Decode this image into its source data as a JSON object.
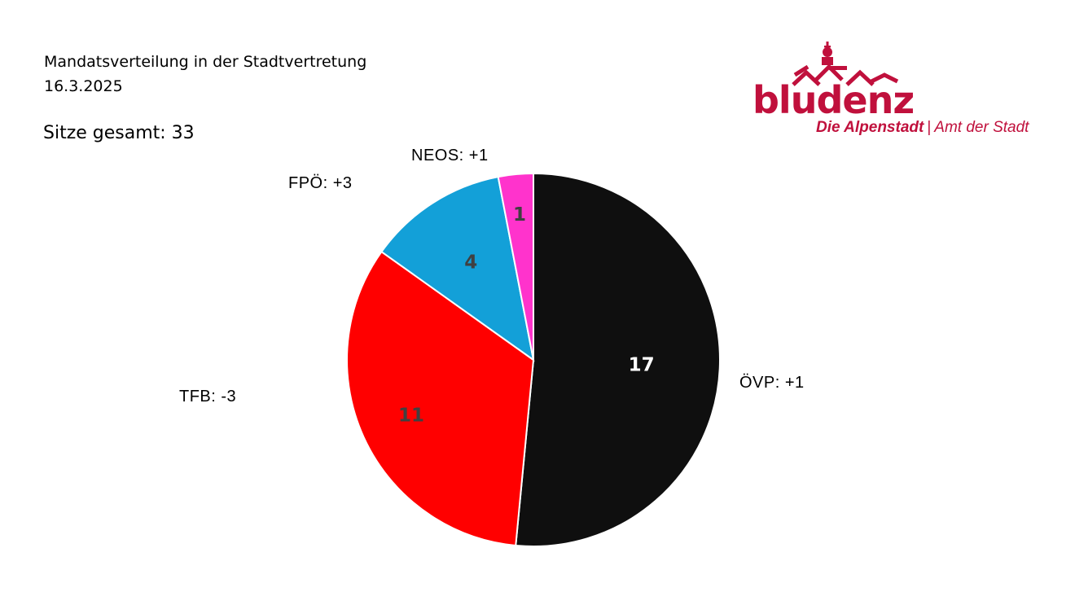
{
  "header": {
    "title": "Mandatsverteilung in der Stadtvertretung",
    "date": "16.3.2025",
    "seats_total": "Sitze gesamt: 33"
  },
  "logo": {
    "wordmark": "bludenz",
    "tagline_primary": "Die Alpenstadt",
    "separator": "|",
    "tagline_secondary": "Amt der Stadt",
    "color": "#c0103c"
  },
  "chart_data": {
    "type": "pie",
    "title": "Mandatsverteilung in der Stadtvertretung",
    "total": 33,
    "start": "12 o'clock, clockwise",
    "slices": [
      {
        "name": "ÖVP",
        "value": 17,
        "change": "+1",
        "color": "#0f0f0f",
        "value_label_color": "#ffffff",
        "external_label": "ÖVP: +1"
      },
      {
        "name": "TFB",
        "value": 11,
        "change": "-3",
        "color": "#ff0000",
        "value_label_color": "#404040",
        "external_label": "TFB: -3"
      },
      {
        "name": "FPÖ",
        "value": 4,
        "change": "+3",
        "color": "#13a0d8",
        "value_label_color": "#404040",
        "external_label": "FPÖ: +3"
      },
      {
        "name": "NEOS",
        "value": 1,
        "change": "+1",
        "color": "#ff33cc",
        "value_label_color": "#404040",
        "external_label": "NEOS: +1"
      }
    ]
  }
}
